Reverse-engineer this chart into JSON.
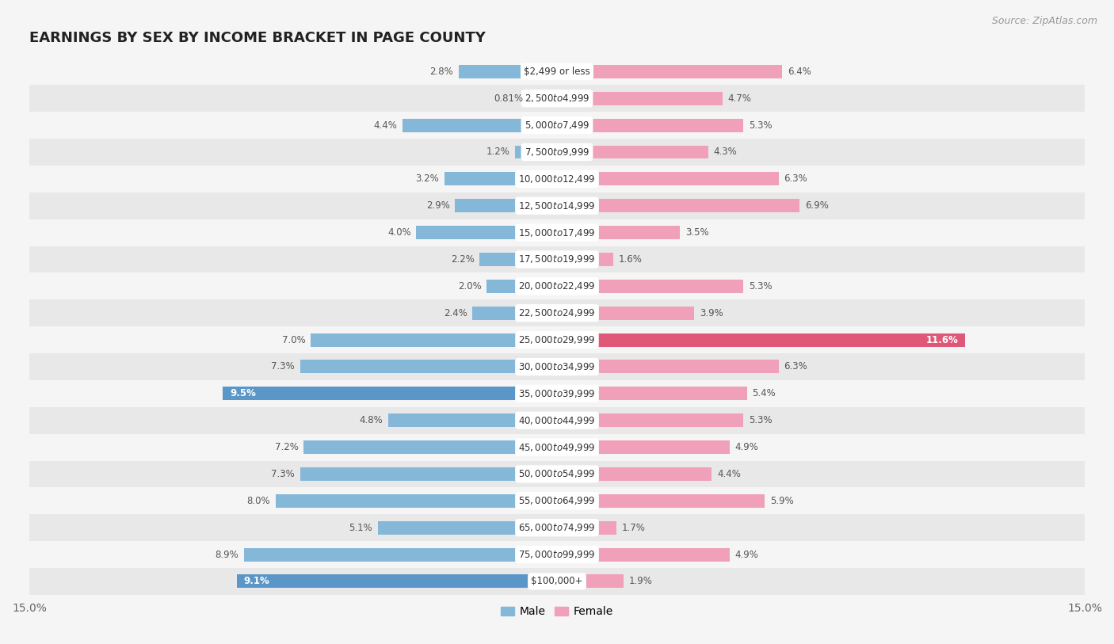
{
  "title": "EARNINGS BY SEX BY INCOME BRACKET IN PAGE COUNTY",
  "source": "Source: ZipAtlas.com",
  "categories": [
    "$2,499 or less",
    "$2,500 to $4,999",
    "$5,000 to $7,499",
    "$7,500 to $9,999",
    "$10,000 to $12,499",
    "$12,500 to $14,999",
    "$15,000 to $17,499",
    "$17,500 to $19,999",
    "$20,000 to $22,499",
    "$22,500 to $24,999",
    "$25,000 to $29,999",
    "$30,000 to $34,999",
    "$35,000 to $39,999",
    "$40,000 to $44,999",
    "$45,000 to $49,999",
    "$50,000 to $54,999",
    "$55,000 to $64,999",
    "$65,000 to $74,999",
    "$75,000 to $99,999",
    "$100,000+"
  ],
  "male_values": [
    2.8,
    0.81,
    4.4,
    1.2,
    3.2,
    2.9,
    4.0,
    2.2,
    2.0,
    2.4,
    7.0,
    7.3,
    9.5,
    4.8,
    7.2,
    7.3,
    8.0,
    5.1,
    8.9,
    9.1
  ],
  "female_values": [
    6.4,
    4.7,
    5.3,
    4.3,
    6.3,
    6.9,
    3.5,
    1.6,
    5.3,
    3.9,
    11.6,
    6.3,
    5.4,
    5.3,
    4.9,
    4.4,
    5.9,
    1.7,
    4.9,
    1.9
  ],
  "male_color": "#85b8d8",
  "female_color": "#f0a0b8",
  "male_highlight_color": "#5a96c8",
  "female_highlight_color": "#e05878",
  "highlight_male_indices": [
    12,
    19
  ],
  "highlight_female_indices": [
    10
  ],
  "row_colors": [
    "#f5f5f5",
    "#e8e8e8"
  ],
  "label_bg_color": "#ffffff",
  "xlim": 15.0,
  "legend_male": "Male",
  "legend_female": "Female",
  "title_fontsize": 13,
  "source_fontsize": 9,
  "label_fontsize": 8.5,
  "value_fontsize": 8.5
}
